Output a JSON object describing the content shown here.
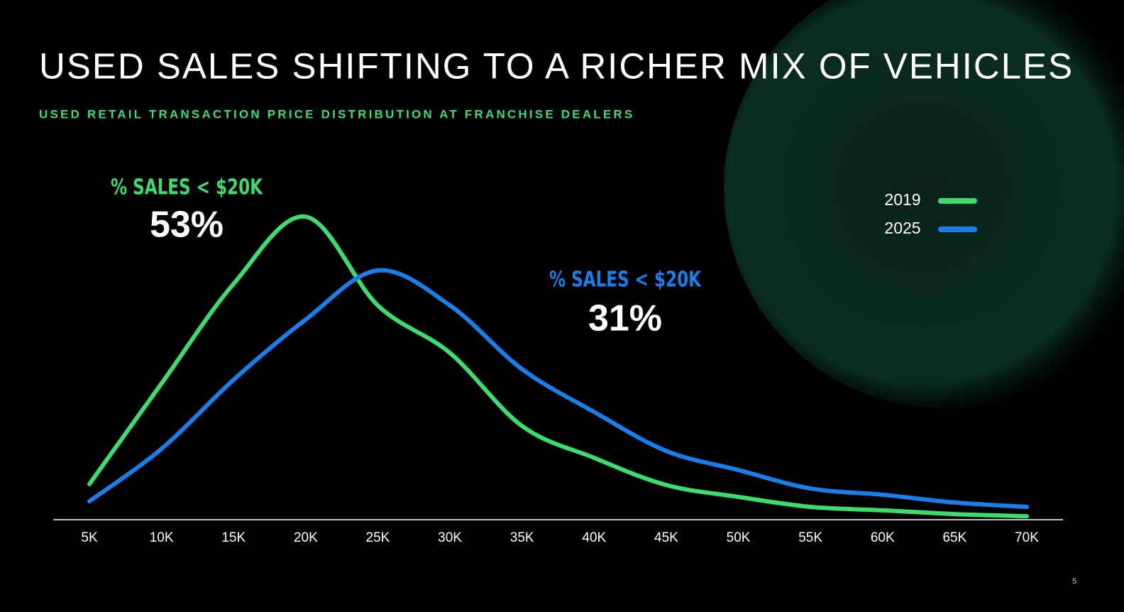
{
  "chart_data": {
    "type": "line",
    "title": "USED SALES SHIFTING TO A RICHER MIX OF VEHICLES",
    "subtitle": "USED RETAIL TRANSACTION PRICE DISTRIBUTION AT FRANCHISE DEALERS",
    "categories": [
      "5K",
      "10K",
      "15K",
      "20K",
      "25K",
      "30K",
      "35K",
      "40K",
      "45K",
      "50K",
      "55K",
      "60K",
      "65K",
      "70K"
    ],
    "series": [
      {
        "name": "2019",
        "color": "#3ddc6e",
        "values": [
          11.4,
          43.6,
          75.5,
          97,
          68.6,
          53.4,
          30,
          19.8,
          11.1,
          7.3,
          4.1,
          3,
          1.8,
          1.1
        ]
      },
      {
        "name": "2025",
        "color": "#1a7fea",
        "values": [
          5.9,
          22.7,
          44.8,
          64.1,
          79.8,
          68.6,
          48.2,
          34.5,
          22,
          15.9,
          10,
          8,
          5.5,
          4.1
        ]
      }
    ],
    "ylim": [
      0,
      100
    ],
    "annotations": [
      {
        "label": "% SALES < $20K",
        "value": "53%"
      },
      {
        "label": "% SALES < $20K",
        "value": "31%"
      }
    ],
    "page_number": "5"
  }
}
